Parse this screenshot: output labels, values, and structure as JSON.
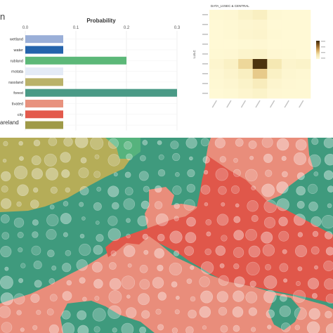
{
  "header": {
    "title_fragment": "n"
  },
  "footer_label": "areland",
  "chart_data": [
    {
      "type": "bar",
      "orientation": "horizontal",
      "title": "Probability",
      "xlim": [
        0,
        0.3
      ],
      "x_ticks": [
        "0.0",
        "0.1",
        "0.2",
        "0.3"
      ],
      "categories": [
        "wetland",
        "water",
        "rubland",
        "motata",
        "rassland",
        "forest",
        "tivated",
        "city",
        "sareland"
      ],
      "values": [
        0.075,
        0.075,
        0.2,
        0.075,
        0.075,
        0.3,
        0.075,
        0.075,
        0.075
      ],
      "colors": [
        "#9aafd8",
        "#2464ac",
        "#5cb878",
        "#e4ebf6",
        "#bab26a",
        "#4a9a86",
        "#e8927e",
        "#e35a4c",
        "#9f9a48"
      ],
      "grid": true
    },
    {
      "type": "heatmap",
      "title": "DATA_LVSEC & CENTRAL",
      "ylabel": "LULC",
      "rows": 9,
      "cols": 7,
      "values": [
        [
          0.02,
          0.03,
          0.08,
          0.12,
          0.02,
          0.01,
          0.01
        ],
        [
          0.01,
          0.02,
          0.04,
          0.05,
          0.01,
          0.01,
          0.01
        ],
        [
          0.01,
          0.02,
          0.05,
          0.06,
          0.02,
          0.01,
          0.01
        ],
        [
          0.01,
          0.01,
          0.02,
          0.03,
          0.01,
          0.01,
          0.01
        ],
        [
          0.02,
          0.03,
          0.06,
          0.08,
          0.03,
          0.02,
          0.01
        ],
        [
          0.05,
          0.1,
          0.3,
          0.95,
          0.2,
          0.06,
          0.08
        ],
        [
          0.03,
          0.06,
          0.12,
          0.35,
          0.1,
          0.04,
          0.03
        ],
        [
          0.02,
          0.04,
          0.08,
          0.15,
          0.05,
          0.03,
          0.02
        ],
        [
          0.01,
          0.02,
          0.05,
          0.08,
          0.03,
          0.02,
          0.02
        ]
      ],
      "legend": "right"
    }
  ],
  "map": {
    "palette": {
      "bareland": "#b5ad58",
      "forest": "#3f9a7d",
      "shrub": "#56b37d",
      "cultivated": "#e98d7b",
      "city": "#e0574a"
    },
    "circle_color": "#ffffff"
  }
}
